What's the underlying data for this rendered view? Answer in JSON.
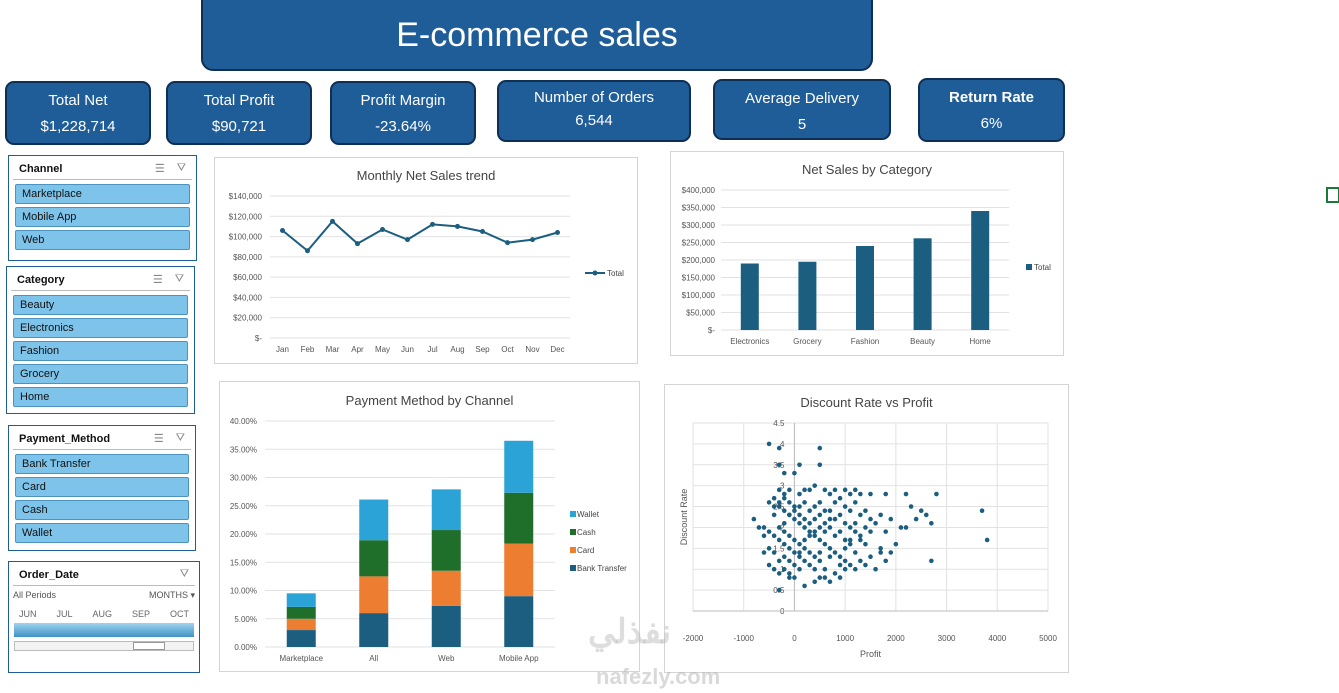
{
  "title": "E-commerce sales",
  "kpis": [
    {
      "label": "Total Net",
      "value": "$1,228,714"
    },
    {
      "label": "Total Profit",
      "value": "$90,721"
    },
    {
      "label": "Profit Margin",
      "value": "-23.64%"
    },
    {
      "label": "Number of Orders",
      "value": "6,544"
    },
    {
      "label": "Average Delivery",
      "value": "5"
    },
    {
      "label": "Return Rate",
      "value": "6%"
    }
  ],
  "slicers": {
    "channel": {
      "title": "Channel",
      "items": [
        "Marketplace",
        "Mobile App",
        "Web"
      ]
    },
    "category": {
      "title": "Category",
      "items": [
        "Beauty",
        "Electronics",
        "Fashion",
        "Grocery",
        "Home"
      ]
    },
    "payment": {
      "title": "Payment_Method",
      "items": [
        "Bank Transfer",
        "Card",
        "Cash",
        "Wallet"
      ]
    }
  },
  "timeline": {
    "title": "Order_Date",
    "periods": "All Periods",
    "unit": "MONTHS",
    "months": [
      "JUN",
      "JUL",
      "AUG",
      "SEP",
      "OCT"
    ]
  },
  "icons": {
    "multiselect": "multi-select-icon",
    "clear": "clear-filter-icon"
  },
  "colors": {
    "brand": "#1f5d99",
    "series": "#1b5e80",
    "wallet": "#2ba3d6",
    "cash": "#1f6f2b",
    "card": "#ed7d31",
    "bank": "#1b5e80"
  },
  "watermark": {
    "arabic": "نفذلي",
    "latin": "nafezly.com"
  },
  "chart_data": [
    {
      "type": "line",
      "title": "Monthly Net Sales trend",
      "categories": [
        "Jan",
        "Feb",
        "Mar",
        "Apr",
        "May",
        "Jun",
        "Jul",
        "Aug",
        "Sep",
        "Oct",
        "Nov",
        "Dec"
      ],
      "series": [
        {
          "name": "Total",
          "values": [
            106000,
            86000,
            115000,
            93000,
            107000,
            97000,
            112000,
            110000,
            105000,
            94000,
            97000,
            104000
          ]
        }
      ],
      "ylim": [
        0,
        140000
      ],
      "yticks": [
        "$-",
        "$20,000",
        "$40,000",
        "$60,000",
        "$80,000",
        "$100,000",
        "$120,000",
        "$140,000"
      ],
      "legend": "right"
    },
    {
      "type": "bar",
      "title": "Net Sales by Category",
      "categories": [
        "Electronics",
        "Grocery",
        "Fashion",
        "Beauty",
        "Home"
      ],
      "series": [
        {
          "name": "Total",
          "values": [
            190000,
            195000,
            240000,
            262000,
            340000
          ]
        }
      ],
      "ylim": [
        0,
        400000
      ],
      "yticks": [
        "$-",
        "$50,000",
        "$100,000",
        "$150,000",
        "$200,000",
        "$250,000",
        "$300,000",
        "$350,000",
        "$400,000"
      ],
      "legend": "right"
    },
    {
      "type": "bar",
      "stacked": true,
      "title": "Payment Method by Channel",
      "categories": [
        "Marketplace",
        "All",
        "Web",
        "Mobile App"
      ],
      "series": [
        {
          "name": "Bank Transfer",
          "values": [
            3.0,
            6.0,
            7.3,
            9.0
          ]
        },
        {
          "name": "Card",
          "values": [
            2.0,
            6.5,
            6.2,
            9.3
          ]
        },
        {
          "name": "Cash",
          "values": [
            2.1,
            6.4,
            7.2,
            9.0
          ]
        },
        {
          "name": "Wallet",
          "values": [
            2.4,
            7.2,
            7.2,
            9.2
          ]
        }
      ],
      "ylim": [
        0,
        40
      ],
      "yticks": [
        "0.00%",
        "5.00%",
        "10.00%",
        "15.00%",
        "20.00%",
        "25.00%",
        "30.00%",
        "35.00%",
        "40.00%"
      ],
      "legend": "right"
    },
    {
      "type": "scatter",
      "title": "Discount Rate vs Profit",
      "xlabel": "Profit",
      "ylabel": "Discount Rate",
      "xlim": [
        -2000,
        5000
      ],
      "ylim": [
        0,
        4.5
      ],
      "xticks": [
        "-2000",
        "-1000",
        "0",
        "1000",
        "2000",
        "3000",
        "4000",
        "5000"
      ],
      "yticks": [
        "0",
        "0.5",
        "1",
        "1.5",
        "2",
        "2.5",
        "3",
        "3.5",
        "4",
        "4.5"
      ],
      "points": [
        [
          -500,
          4.0
        ],
        [
          -300,
          3.9
        ],
        [
          500,
          3.9
        ],
        [
          -300,
          3.5
        ],
        [
          -200,
          3.3
        ],
        [
          0,
          3.3
        ],
        [
          100,
          3.5
        ],
        [
          500,
          3.5
        ],
        [
          -300,
          2.6
        ],
        [
          -200,
          2.8
        ],
        [
          -100,
          2.9
        ],
        [
          100,
          2.8
        ],
        [
          300,
          2.9
        ],
        [
          400,
          3.0
        ],
        [
          600,
          2.9
        ],
        [
          700,
          2.8
        ],
        [
          800,
          2.9
        ],
        [
          1000,
          2.9
        ],
        [
          1100,
          2.8
        ],
        [
          1200,
          2.9
        ],
        [
          1300,
          2.8
        ],
        [
          1500,
          2.8
        ],
        [
          1800,
          2.8
        ],
        [
          2200,
          2.8
        ],
        [
          2800,
          2.8
        ],
        [
          -400,
          2.7
        ],
        [
          -300,
          2.5
        ],
        [
          -200,
          2.4
        ],
        [
          -100,
          2.3
        ],
        [
          0,
          2.2
        ],
        [
          100,
          2.1
        ],
        [
          200,
          2.0
        ],
        [
          300,
          1.9
        ],
        [
          400,
          1.8
        ],
        [
          500,
          1.7
        ],
        [
          600,
          1.6
        ],
        [
          700,
          1.5
        ],
        [
          800,
          1.4
        ],
        [
          900,
          1.3
        ],
        [
          1000,
          1.2
        ],
        [
          1100,
          1.1
        ],
        [
          1200,
          1.0
        ],
        [
          -600,
          2.0
        ],
        [
          -500,
          1.9
        ],
        [
          -400,
          1.8
        ],
        [
          -300,
          1.7
        ],
        [
          -200,
          1.6
        ],
        [
          -100,
          1.5
        ],
        [
          0,
          1.4
        ],
        [
          100,
          1.3
        ],
        [
          200,
          1.2
        ],
        [
          300,
          1.1
        ],
        [
          400,
          1.0
        ],
        [
          -500,
          1.5
        ],
        [
          -400,
          1.4
        ],
        [
          -300,
          1.2
        ],
        [
          -200,
          1.0
        ],
        [
          -100,
          0.9
        ],
        [
          0,
          0.8
        ],
        [
          100,
          1.0
        ],
        [
          200,
          0.6
        ],
        [
          400,
          0.7
        ],
        [
          600,
          0.8
        ],
        [
          -300,
          0.5
        ],
        [
          -100,
          0.8
        ],
        [
          500,
          1.2
        ],
        [
          700,
          1.3
        ],
        [
          900,
          1.1
        ],
        [
          1000,
          1.5
        ],
        [
          1100,
          1.7
        ],
        [
          1300,
          1.8
        ],
        [
          1500,
          1.9
        ],
        [
          1700,
          1.5
        ],
        [
          1800,
          1.2
        ],
        [
          1900,
          1.4
        ],
        [
          2000,
          1.6
        ],
        [
          2200,
          2.0
        ],
        [
          2400,
          2.2
        ],
        [
          2500,
          2.4
        ],
        [
          2600,
          2.3
        ],
        [
          2700,
          2.1
        ],
        [
          2700,
          1.2
        ],
        [
          3700,
          2.4
        ],
        [
          3800,
          1.7
        ],
        [
          -800,
          2.2
        ],
        [
          -700,
          2.0
        ],
        [
          -600,
          1.8
        ],
        [
          -200,
          2.1
        ],
        [
          -100,
          2.3
        ],
        [
          0,
          2.4
        ],
        [
          100,
          2.5
        ],
        [
          200,
          2.6
        ],
        [
          300,
          2.4
        ],
        [
          400,
          2.2
        ],
        [
          500,
          2.3
        ],
        [
          600,
          2.1
        ],
        [
          700,
          2.0
        ],
        [
          800,
          2.2
        ],
        [
          900,
          2.3
        ],
        [
          1000,
          2.5
        ],
        [
          1100,
          2.4
        ],
        [
          1200,
          2.1
        ],
        [
          1300,
          2.3
        ],
        [
          1400,
          2.0
        ],
        [
          1500,
          2.2
        ],
        [
          1700,
          2.3
        ],
        [
          1900,
          2.2
        ],
        [
          2100,
          2.0
        ],
        [
          2300,
          2.5
        ],
        [
          200,
          2.9
        ],
        [
          -400,
          2.3
        ],
        [
          -300,
          2.0
        ],
        [
          -200,
          1.9
        ],
        [
          -100,
          1.8
        ],
        [
          0,
          1.7
        ],
        [
          100,
          1.6
        ],
        [
          200,
          1.5
        ],
        [
          300,
          1.4
        ],
        [
          400,
          1.3
        ],
        [
          500,
          1.4
        ],
        [
          600,
          1.9
        ],
        [
          700,
          2.4
        ],
        [
          800,
          2.6
        ],
        [
          900,
          2.7
        ],
        [
          1000,
          2.1
        ],
        [
          1100,
          2.0
        ],
        [
          1200,
          1.9
        ],
        [
          1300,
          1.7
        ],
        [
          1400,
          1.6
        ],
        [
          1500,
          1.3
        ],
        [
          1600,
          1.0
        ],
        [
          1700,
          1.4
        ],
        [
          1800,
          1.9
        ],
        [
          -500,
          2.6
        ],
        [
          -400,
          2.5
        ],
        [
          -300,
          2.9
        ],
        [
          -200,
          2.7
        ],
        [
          -100,
          2.6
        ],
        [
          0,
          2.5
        ],
        [
          100,
          2.3
        ],
        [
          200,
          2.2
        ],
        [
          300,
          2.1
        ],
        [
          400,
          2.5
        ],
        [
          500,
          2.6
        ],
        [
          600,
          2.4
        ],
        [
          700,
          2.2
        ],
        [
          800,
          1.8
        ],
        [
          900,
          1.9
        ],
        [
          1000,
          1.7
        ],
        [
          1100,
          1.6
        ],
        [
          1200,
          1.4
        ],
        [
          1300,
          1.2
        ],
        [
          1400,
          1.1
        ],
        [
          1000,
          1.0
        ],
        [
          900,
          0.8
        ],
        [
          800,
          0.9
        ],
        [
          700,
          0.7
        ],
        [
          600,
          1.0
        ],
        [
          500,
          0.8
        ],
        [
          -600,
          1.4
        ],
        [
          -500,
          1.1
        ],
        [
          -400,
          1.0
        ],
        [
          -300,
          0.9
        ],
        [
          -200,
          1.3
        ],
        [
          -100,
          1.2
        ],
        [
          0,
          1.1
        ],
        [
          100,
          1.4
        ],
        [
          200,
          1.7
        ],
        [
          300,
          1.8
        ],
        [
          400,
          1.9
        ],
        [
          500,
          2.0
        ],
        [
          1600,
          2.1
        ],
        [
          1400,
          2.4
        ],
        [
          1200,
          2.6
        ]
      ],
      "legend": "none"
    }
  ]
}
